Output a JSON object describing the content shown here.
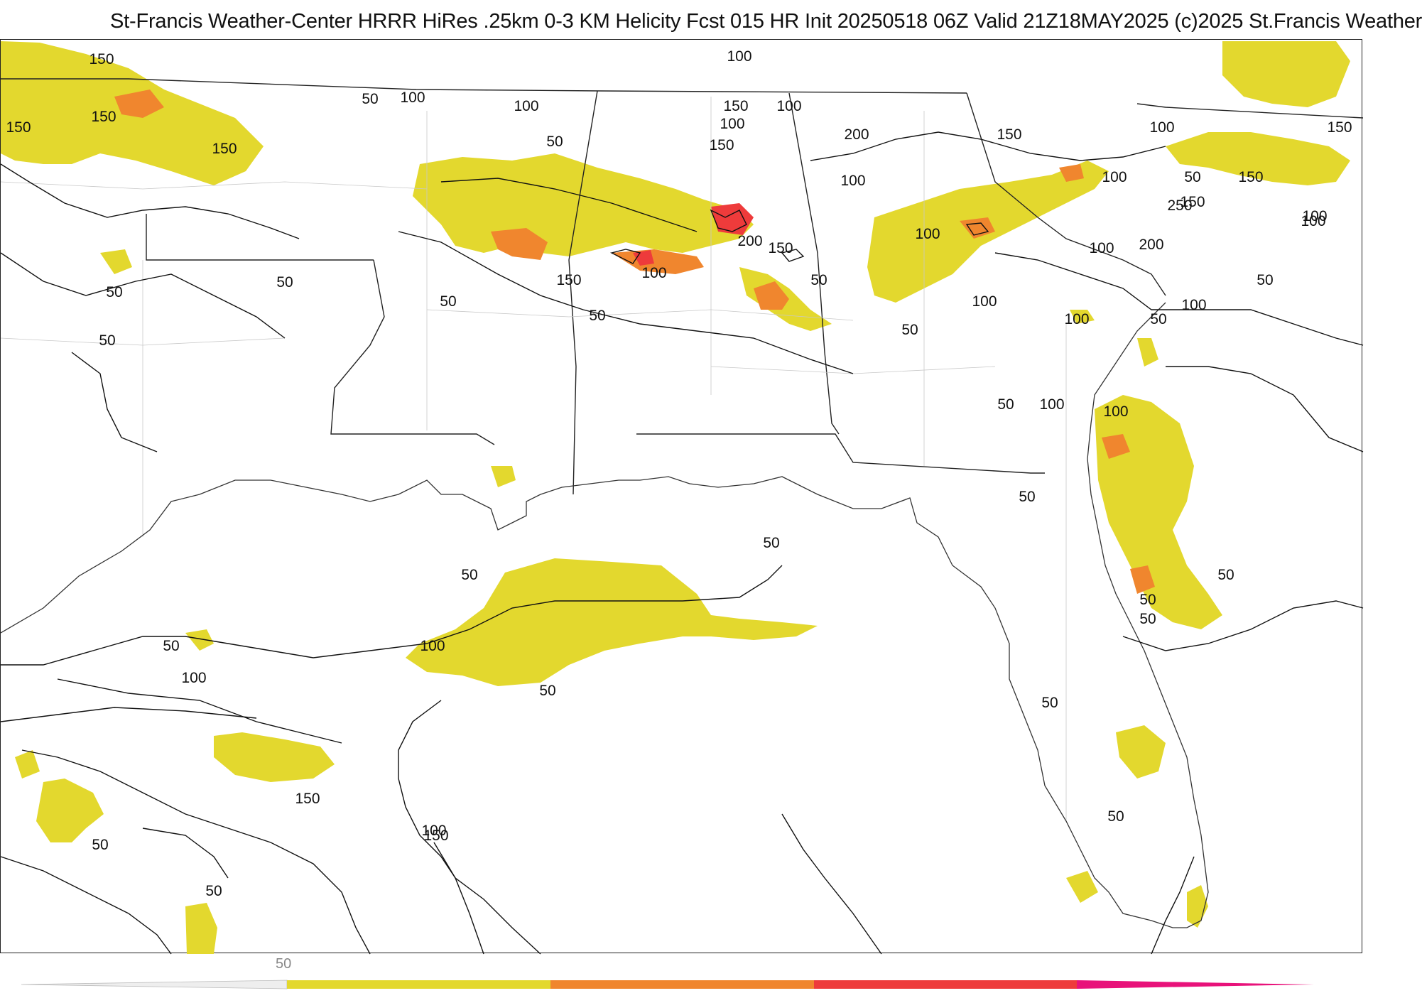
{
  "header": {
    "title": "St-Francis Weather-Center HRRR HiRes .25km 0-3 KM Helicity Fcst 015 HR Init 20250518 06Z  Valid 21Z18MAY2025    (c)2025 St.Francis Weather"
  },
  "colors": {
    "fill_50": "#e3d82e",
    "fill_100": "#f0862e",
    "fill_150": "#ee3b3b",
    "fill_200": "#e8127a",
    "contour": "#111111",
    "borders": "#bbbbbb"
  },
  "map": {
    "contour_labels": [
      "150",
      "150",
      "150",
      "150",
      "100",
      "50",
      "100",
      "50",
      "100",
      "150",
      "100",
      "150",
      "200",
      "100",
      "150",
      "100",
      "150",
      "50",
      "100",
      "150",
      "100",
      "100",
      "100",
      "150",
      "100",
      "150",
      "150",
      "100",
      "250",
      "200",
      "100",
      "50",
      "100",
      "100",
      "50",
      "50",
      "100",
      "100",
      "50",
      "50",
      "50",
      "50",
      "50",
      "50",
      "50",
      "50",
      "100",
      "50",
      "100",
      "50",
      "100",
      "50",
      "150",
      "50",
      "150",
      "200",
      "50",
      "50",
      "50",
      "50",
      "50",
      "50",
      "100",
      "50"
    ]
  },
  "colorbar": {
    "tick_label": "50",
    "segments": [
      "#e3d82e",
      "#f0862e",
      "#ee3b3b",
      "#e8127a"
    ]
  }
}
